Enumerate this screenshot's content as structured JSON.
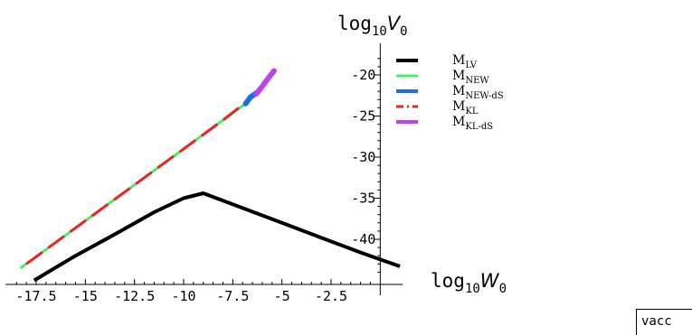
{
  "chart_data": {
    "type": "line",
    "xlabel": "log",
    "xlabel_sub": "10",
    "xlabel_var": "W",
    "xlabel_var_sub": "0",
    "ylabel": "log",
    "ylabel_sub": "10",
    "ylabel_var": "V",
    "ylabel_var_sub": "0",
    "xlim": [
      -18.6,
      0.0
    ],
    "ylim": [
      -45.5,
      -17.0
    ],
    "x_ticks": [
      -17.5,
      -15,
      -12.5,
      -10,
      -7.5,
      -5,
      -2.5
    ],
    "x_tick_labels": [
      "-17.5",
      "-15",
      "-12.5",
      "-10",
      "-7.5",
      "-5",
      "-2.5"
    ],
    "y_ticks": [
      -20,
      -25,
      -30,
      -35,
      -40
    ],
    "y_tick_labels": [
      "-20",
      "-25",
      "-30",
      "-35",
      "-40"
    ],
    "legend_position": "top-right",
    "series": [
      {
        "name": "M",
        "name_sub": "LV",
        "color": "#000000",
        "style": "solid",
        "width": 4,
        "x": [
          -17.6,
          -15.5,
          -13.5,
          -11.5,
          -10.0,
          -9.0,
          -7.0,
          -5.0,
          -3.0,
          -1.0,
          1.0
        ],
        "y": [
          -45.0,
          -42.0,
          -39.4,
          -36.7,
          -35.0,
          -34.4,
          -36.2,
          -38.0,
          -39.8,
          -41.6,
          -43.3
        ]
      },
      {
        "name": "M",
        "name_sub": "NEW",
        "color": "#44ee66",
        "style": "solid",
        "width": 3,
        "x": [
          -18.3,
          -16.0,
          -14.0,
          -12.0,
          -10.0,
          -8.0,
          -6.8
        ],
        "y": [
          -43.5,
          -39.5,
          -36.0,
          -32.5,
          -29.0,
          -25.5,
          -23.4
        ]
      },
      {
        "name": "M",
        "name_sub": "NEW-dS",
        "color": "#1e6fe0",
        "style": "solid",
        "width": 6,
        "x": [
          -6.85,
          -6.6,
          -6.3
        ],
        "y": [
          -23.5,
          -22.7,
          -22.2
        ]
      },
      {
        "name": "M",
        "name_sub": "KL",
        "color": "#ee2222",
        "style": "dashed",
        "width": 3,
        "x": [
          -18.0,
          -16.0,
          -14.0,
          -12.0,
          -10.0,
          -8.0,
          -7.2
        ],
        "y": [
          -43.0,
          -39.5,
          -36.0,
          -32.5,
          -29.0,
          -25.5,
          -24.0
        ]
      },
      {
        "name": "M",
        "name_sub": "KL-dS",
        "color": "#bb44ee",
        "style": "solid",
        "width": 6,
        "x": [
          -6.3,
          -6.0,
          -5.7,
          -5.4
        ],
        "y": [
          -22.3,
          -21.4,
          -20.4,
          -19.5
        ]
      }
    ]
  },
  "corner_label": "vacc"
}
